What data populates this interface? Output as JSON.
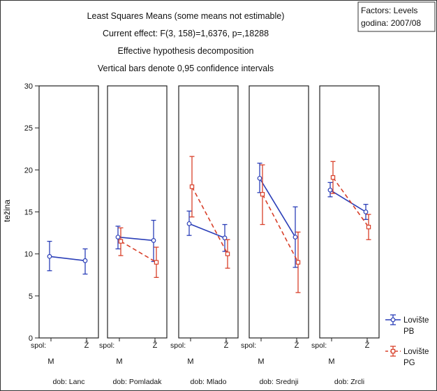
{
  "chart_data": {
    "type": "line",
    "title_lines": [
      "Least Squares Means (some means not estimable)",
      "Current effect: F(3, 158)=1,6376, p=,18288",
      "Effective hypothesis decomposition",
      "Vertical bars denote 0,95 confidence intervals"
    ],
    "factors_box": [
      "Factors: Levels",
      "godina: 2007/08"
    ],
    "ylabel": "težina",
    "ylim": [
      0,
      30
    ],
    "y_ticks": [
      "0",
      "5",
      "10",
      "15",
      "20",
      "25",
      "30"
    ],
    "x_factor_label": "spol:",
    "x_categories": [
      "M",
      "Ž"
    ],
    "panels": [
      {
        "label": "dob: Lanc",
        "series": [
          {
            "series": "PB",
            "points": [
              {
                "mean": 9.7,
                "lo": 8.0,
                "hi": 11.5
              },
              {
                "mean": 9.2,
                "lo": 7.6,
                "hi": 10.6
              }
            ]
          }
        ]
      },
      {
        "label": "dob: Pomladak",
        "series": [
          {
            "series": "PB",
            "points": [
              {
                "mean": 12.0,
                "lo": 10.6,
                "hi": 13.3
              },
              {
                "mean": 11.6,
                "lo": 9.1,
                "hi": 14.0
              }
            ]
          },
          {
            "series": "PG",
            "points": [
              {
                "mean": 11.5,
                "lo": 9.8,
                "hi": 13.1
              },
              {
                "mean": 9.0,
                "lo": 7.2,
                "hi": 10.8
              }
            ]
          }
        ]
      },
      {
        "label": "dob: Mlado",
        "series": [
          {
            "series": "PB",
            "points": [
              {
                "mean": 13.6,
                "lo": 12.2,
                "hi": 15.1
              },
              {
                "mean": 11.9,
                "lo": 10.3,
                "hi": 13.5
              }
            ]
          },
          {
            "series": "PG",
            "points": [
              {
                "mean": 18.0,
                "lo": 14.4,
                "hi": 21.6
              },
              {
                "mean": 10.0,
                "lo": 8.3,
                "hi": 11.7
              }
            ]
          }
        ]
      },
      {
        "label": "dob: Srednji",
        "series": [
          {
            "series": "PB",
            "points": [
              {
                "mean": 19.0,
                "lo": 17.3,
                "hi": 20.8
              },
              {
                "mean": 12.0,
                "lo": 8.4,
                "hi": 15.6
              }
            ]
          },
          {
            "series": "PG",
            "points": [
              {
                "mean": 17.1,
                "lo": 13.5,
                "hi": 20.6
              },
              {
                "mean": 9.0,
                "lo": 5.4,
                "hi": 12.6
              }
            ]
          }
        ]
      },
      {
        "label": "dob: Zrcli",
        "series": [
          {
            "series": "PB",
            "points": [
              {
                "mean": 17.6,
                "lo": 16.8,
                "hi": 18.5
              },
              {
                "mean": 15.0,
                "lo": 14.1,
                "hi": 15.9
              }
            ]
          },
          {
            "series": "PG",
            "points": [
              {
                "mean": 19.1,
                "lo": 17.2,
                "hi": 21.0
              },
              {
                "mean": 13.2,
                "lo": 11.7,
                "hi": 14.7
              }
            ]
          }
        ]
      }
    ],
    "legend": [
      {
        "key": "PB",
        "line1": "Lovište",
        "line2": "PB",
        "color": "#2b3fb8",
        "dash": false,
        "marker": "circle"
      },
      {
        "key": "PG",
        "line1": "Lovište",
        "line2": "PG",
        "color": "#d8402a",
        "dash": true,
        "marker": "square"
      }
    ],
    "legend_position": "bottom-right",
    "grid": false
  }
}
